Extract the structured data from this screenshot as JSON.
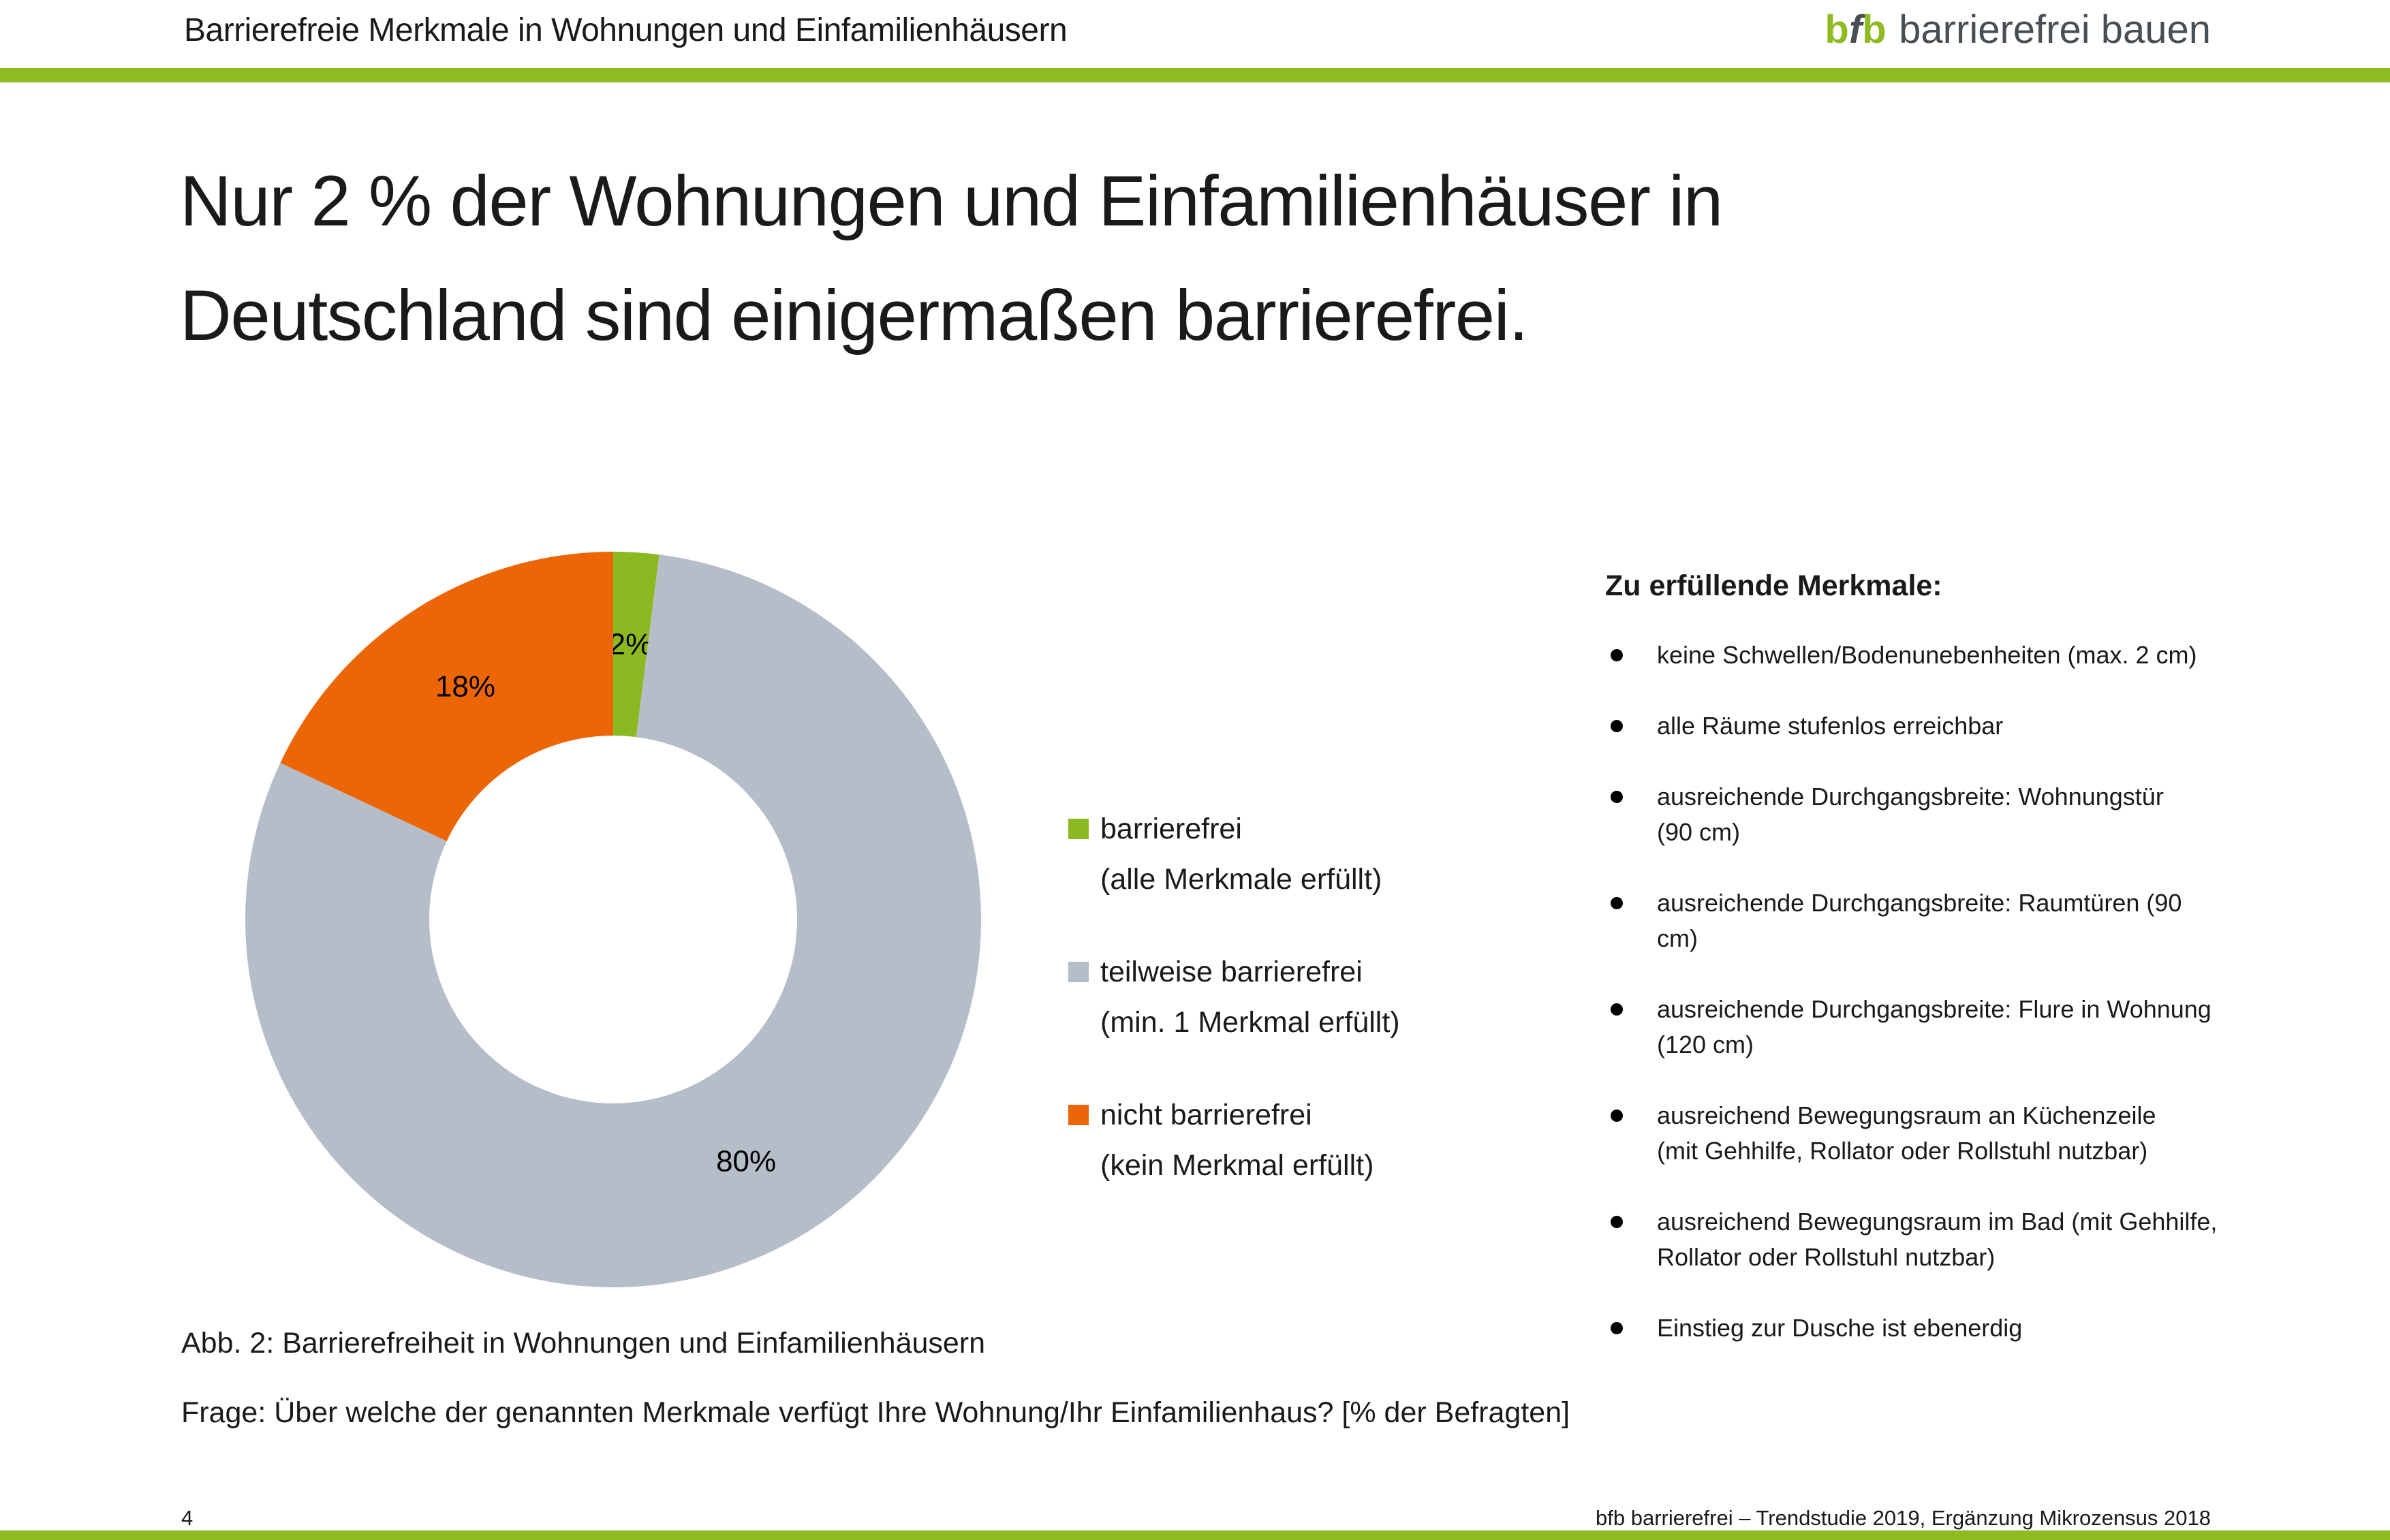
{
  "header": {
    "title": "Barrierefreie Merkmale in Wohnungen und Einfamilienhäusern",
    "logo": {
      "b1": "b",
      "f": "f",
      "b2": "b",
      "rest": "barrierefrei bauen"
    }
  },
  "headline": "Nur 2 % der Wohnungen und Einfamilienhäuser in\nDeutschland sind einigermaßen barrierefrei.",
  "chart_data": {
    "type": "pie",
    "subtype": "donut",
    "title": "Barrierefreiheit in Wohnungen und Einfamilienhäusern",
    "unit": "% der Befragten",
    "start_angle_deg": 0,
    "direction": "clockwise",
    "inner_radius_ratio": 0.5,
    "legend_position": "right-of-chart",
    "slices": [
      {
        "label": "barrierefrei",
        "sublabel": "(alle Merkmale erfüllt)",
        "value": 2,
        "data_label": "2%",
        "color": "#8cb821"
      },
      {
        "label": "teilweise barrierefrei",
        "sublabel": "(min. 1 Merkmal erfüllt)",
        "value": 80,
        "data_label": "80%",
        "color": "#b5bdc9"
      },
      {
        "label": "nicht barrierefrei",
        "sublabel": "(kein Merkmal erfüllt)",
        "value": 18,
        "data_label": "18%",
        "color": "#ec6608"
      }
    ]
  },
  "right_panel": {
    "heading": "Zu erfüllende Merkmale:",
    "bullets": [
      "keine Schwellen/Bodenunebenheiten (max. 2 cm)",
      "alle Räume stufenlos erreichbar",
      "ausreichende Durchgangsbreite: Wohnungstür\n(90 cm)",
      "ausreichende Durchgangsbreite: Raumtüren (90 cm)",
      "ausreichende Durchgangsbreite: Flure in Wohnung\n(120 cm)",
      "ausreichend Bewegungsraum an Küchenzeile\n(mit Gehhilfe, Rollator oder Rollstuhl nutzbar)",
      "ausreichend Bewegungsraum im Bad (mit Gehhilfe,\nRollator oder Rollstuhl nutzbar)",
      "Einstieg zur Dusche ist ebenerdig"
    ]
  },
  "captions": {
    "figure": "Abb. 2: Barrierefreiheit in Wohnungen und Einfamilienhäusern",
    "question": "Frage: Über welche der genannten Merkmale verfügt Ihre Wohnung/Ihr Einfamilienhaus? [% der Befragten]"
  },
  "footer": {
    "page_number": "4",
    "source": "bfb barrierefrei – Trendstudie 2019, Ergänzung Mikrozensus 2018"
  },
  "colors": {
    "green": "#8ebb21",
    "orange": "#ec6608",
    "gray": "#b5bdc9",
    "logo_gray": "#474f54",
    "text": "#1a1a1a"
  }
}
